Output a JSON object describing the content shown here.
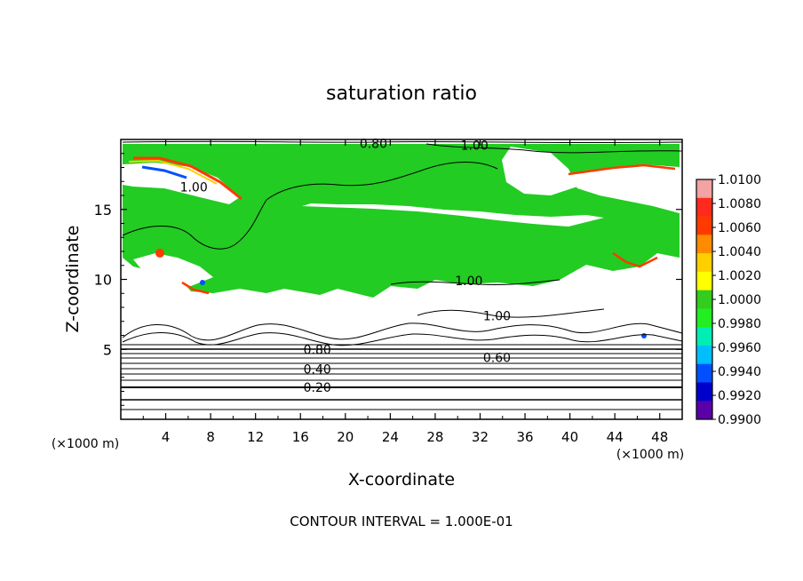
{
  "chart_data": {
    "type": "heatmap",
    "title": "saturation ratio",
    "xlabel": "X-coordinate",
    "ylabel": "Z-coordinate",
    "x_unit_label": "(×1000 m)",
    "y_unit_label": "(×1000 m)",
    "xlim": [
      0,
      50
    ],
    "ylim": [
      0,
      20
    ],
    "x_ticks": [
      "4",
      "8",
      "12",
      "16",
      "20",
      "24",
      "28",
      "32",
      "36",
      "40",
      "44",
      "48"
    ],
    "y_ticks": [
      "5",
      "10",
      "15"
    ],
    "colorbar_labels": [
      "1.0100",
      "1.0080",
      "1.0060",
      "1.0040",
      "1.0020",
      "1.0000",
      "0.9980",
      "0.9960",
      "0.9940",
      "0.9920",
      "0.9900"
    ],
    "colorbar_colors": [
      "#f2a3a3",
      "#ff2a1c",
      "#ff3a00",
      "#ff8c00",
      "#ffcf00",
      "#ffff00",
      "#33cc1f",
      "#22ee22",
      "#00eeb4",
      "#00bfff",
      "#0050ff",
      "#0000cc",
      "#5a00a8"
    ],
    "contour_interval_text": "CONTOUR INTERVAL = 1.000E-01",
    "contour_labels": [
      {
        "text": "0.80",
        "x": 22.5,
        "z": 19.7
      },
      {
        "text": "1.00",
        "x": 31.5,
        "z": 19.6
      },
      {
        "text": "1.00",
        "x": 6.5,
        "z": 16.6
      },
      {
        "text": "1.00",
        "x": 31.0,
        "z": 9.9
      },
      {
        "text": "1.00",
        "x": 33.5,
        "z": 7.4
      },
      {
        "text": "0.80",
        "x": 17.5,
        "z": 5.0
      },
      {
        "text": "0.60",
        "x": 33.5,
        "z": 4.4
      },
      {
        "text": "0.40",
        "x": 17.5,
        "z": 3.6
      },
      {
        "text": "0.20",
        "x": 17.5,
        "z": 2.3
      }
    ],
    "stratified_contour_levels_z": [
      0.7,
      1.4,
      2.3,
      2.8,
      3.2,
      3.6,
      4.0,
      4.4,
      4.7,
      5.0,
      5.3
    ]
  }
}
